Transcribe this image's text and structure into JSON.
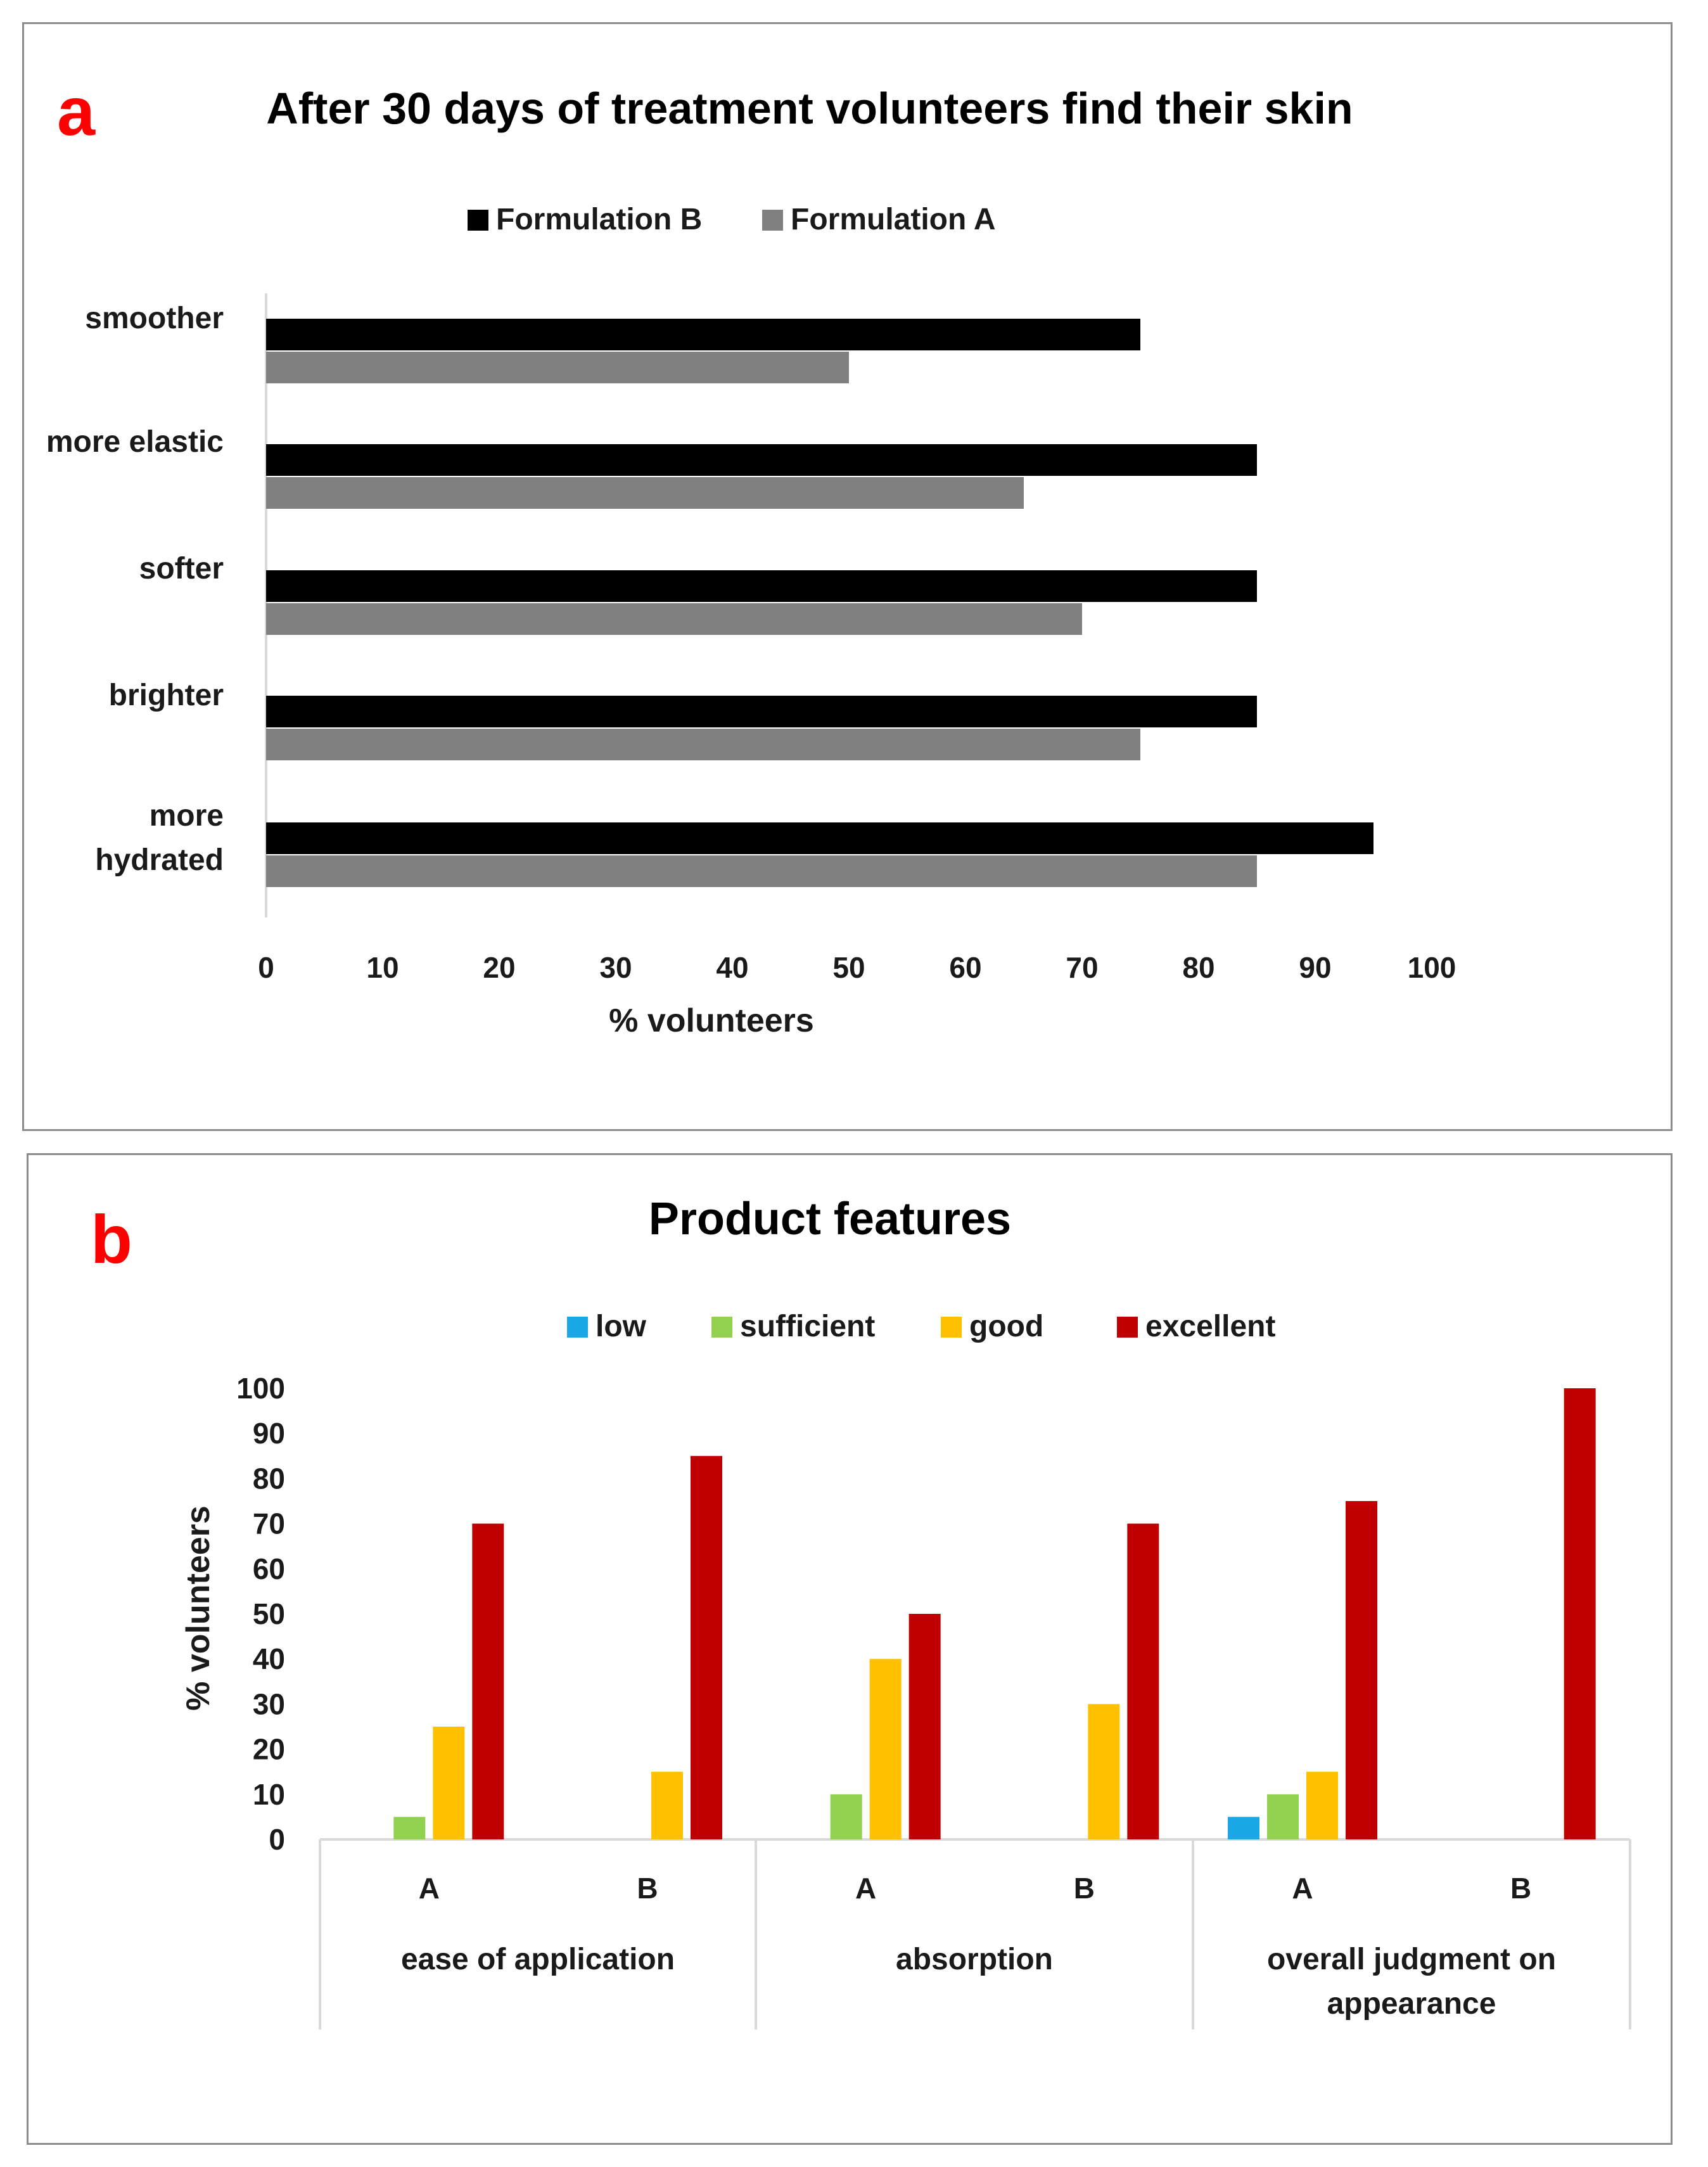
{
  "figure": {
    "panel_a": {
      "letter": "a"
    },
    "panel_b": {
      "letter": "b"
    }
  },
  "colors": {
    "formulation_b": "#000000",
    "formulation_a": "#808080",
    "low": "#1aa7e6",
    "sufficient": "#92d050",
    "good": "#ffc000",
    "excellent": "#c00000",
    "axis": "#d9d9d9",
    "panel_letter": "#ff0000"
  },
  "chart_data": [
    {
      "type": "bar",
      "orientation": "horizontal",
      "title": "After 30 days of treatment volunteers find their skin",
      "categories": [
        "smoother",
        "more elastic",
        "softer",
        "brighter",
        "more hydrated"
      ],
      "category_lines": [
        [
          "smoother"
        ],
        [
          "more elastic"
        ],
        [
          "softer"
        ],
        [
          "brighter"
        ],
        [
          "more",
          "hydrated"
        ]
      ],
      "series": [
        {
          "name": "Formulation B",
          "color_key": "formulation_b",
          "values": [
            75,
            85,
            85,
            85,
            95
          ]
        },
        {
          "name": "Formulation A",
          "color_key": "formulation_a",
          "values": [
            50,
            65,
            70,
            75,
            85
          ]
        }
      ],
      "xlabel": "% volunteers",
      "xlim": [
        0,
        100
      ],
      "xticks": [
        "0",
        "10",
        "20",
        "30",
        "40",
        "50",
        "60",
        "70",
        "80",
        "90",
        "100"
      ],
      "legend": "top-center",
      "grid": false
    },
    {
      "type": "bar",
      "orientation": "vertical",
      "title": "Product features",
      "groups": [
        {
          "label_lines": [
            "ease of application"
          ],
          "subcategories": [
            "A",
            "B"
          ]
        },
        {
          "label_lines": [
            "absorption"
          ],
          "subcategories": [
            "A",
            "B"
          ]
        },
        {
          "label_lines": [
            "overall judgment on",
            "appearance"
          ],
          "subcategories": [
            "A",
            "B"
          ]
        }
      ],
      "series": [
        {
          "name": "low",
          "color_key": "low",
          "values": [
            0,
            0,
            0,
            0,
            5,
            0
          ]
        },
        {
          "name": "sufficient",
          "color_key": "sufficient",
          "values": [
            5,
            0,
            10,
            0,
            10,
            0
          ]
        },
        {
          "name": "good",
          "color_key": "good",
          "values": [
            25,
            15,
            40,
            30,
            15,
            0
          ]
        },
        {
          "name": "excellent",
          "color_key": "excellent",
          "values": [
            70,
            85,
            50,
            70,
            75,
            100
          ]
        }
      ],
      "ylabel": "% volunteers",
      "ylim": [
        0,
        100
      ],
      "yticks": [
        "0",
        "10",
        "20",
        "30",
        "40",
        "50",
        "60",
        "70",
        "80",
        "90",
        "100"
      ],
      "legend": "top-center",
      "grid": false
    }
  ]
}
